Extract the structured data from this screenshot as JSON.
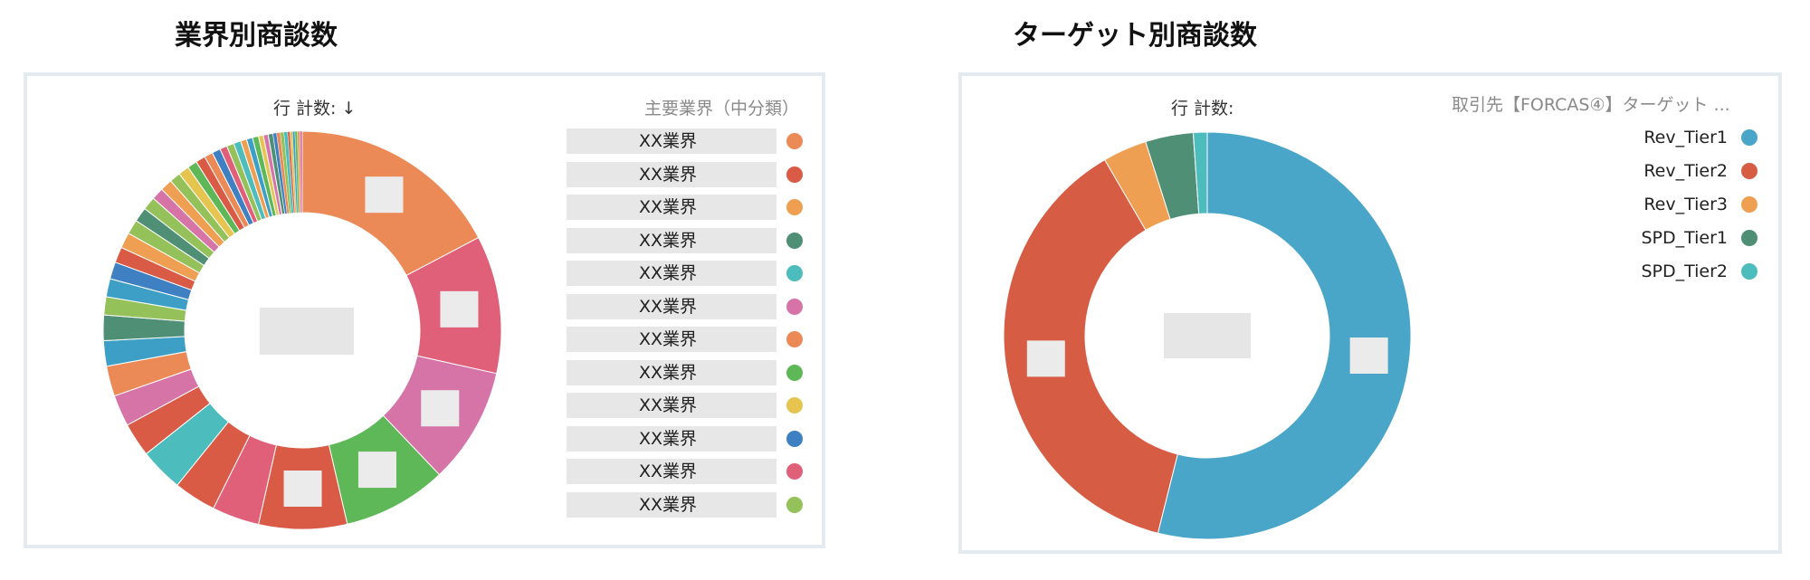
{
  "left_panel": {
    "title": "業界別商談数",
    "measure_label": "行 計数: ↓",
    "legend_title": "主要業界（中分類）",
    "legend": [
      {
        "label": "XX業界",
        "color": "#ec8a57"
      },
      {
        "label": "XX業界",
        "color": "#d95b45"
      },
      {
        "label": "XX業界",
        "color": "#ef9f52"
      },
      {
        "label": "XX業界",
        "color": "#4e8f76"
      },
      {
        "label": "XX業界",
        "color": "#4dbcbc"
      },
      {
        "label": "XX業界",
        "color": "#d674a8"
      },
      {
        "label": "XX業界",
        "color": "#ec8a57"
      },
      {
        "label": "XX業界",
        "color": "#5fb857"
      },
      {
        "label": "XX業界",
        "color": "#e5c550"
      },
      {
        "label": "XX業界",
        "color": "#3e80c1"
      },
      {
        "label": "XX業界",
        "color": "#e0607a"
      },
      {
        "label": "XX業界",
        "color": "#94c15a"
      }
    ]
  },
  "right_panel": {
    "title": "ターゲット別商談数",
    "measure_label": "行 計数:",
    "legend_title": "取引先【FORCAS④】ターゲット ...",
    "legend": [
      {
        "label": "Rev_Tier1",
        "color": "#4aa6c8"
      },
      {
        "label": "Rev_Tier2",
        "color": "#d65c44"
      },
      {
        "label": "Rev_Tier3",
        "color": "#ef9f52"
      },
      {
        "label": "SPD_Tier1",
        "color": "#4e8f76"
      },
      {
        "label": "SPD_Tier2",
        "color": "#4dbcbc"
      }
    ]
  },
  "chart_data": [
    {
      "type": "pie",
      "variant": "donut",
      "title": "業界別商談数",
      "legend_title": "主要業界（中分類）",
      "sort": "descending",
      "values": [
        17.6,
        11.4,
        9.6,
        8.6,
        7.3,
        3.9,
        3.5,
        3.6,
        2.8,
        2.6,
        2.5,
        2.1,
        2.1,
        1.5,
        1.5,
        1.4,
        1.3,
        1.3,
        1.2,
        1.2,
        1.1,
        1.0,
        1.0,
        0.9,
        0.9,
        0.8,
        0.8,
        0.7,
        0.7,
        0.6,
        0.6,
        0.6,
        0.5,
        0.5,
        0.5,
        0.4,
        0.4,
        0.4,
        0.3,
        0.3,
        0.3,
        0.3,
        0.2,
        0.2,
        0.2,
        0.2,
        0.2,
        0.2
      ],
      "colors": [
        "#ec8a57",
        "#e0607a",
        "#d674a8",
        "#5fb857",
        "#d95b45",
        "#e0607a",
        "#d95b45",
        "#4dbcbc",
        "#d95b45",
        "#d674a8",
        "#ec8a57",
        "#3e9fc6",
        "#4e8f76",
        "#94c15a",
        "#3e9fc6",
        "#3e80c1",
        "#d95b45",
        "#ef9f52",
        "#94c15a",
        "#4e8f76",
        "#94c15a",
        "#d674a8",
        "#ef9f52",
        "#94c15a",
        "#e5c550",
        "#5fb857",
        "#d95b45",
        "#ec8a57",
        "#3e80c1",
        "#e0607a",
        "#94c15a",
        "#4dbcbc",
        "#ef9f52",
        "#3e9fc6",
        "#5fb857",
        "#e5c550",
        "#d674a8",
        "#4e8f76",
        "#3e80c1",
        "#ec8a57",
        "#94c15a",
        "#4dbcbc",
        "#d95b45",
        "#e5c550",
        "#3e9fc6",
        "#5fb857",
        "#ef9f52",
        "#d674a8"
      ],
      "masked_labels": [
        0,
        1,
        2,
        3,
        4
      ]
    },
    {
      "type": "pie",
      "variant": "donut",
      "title": "ターゲット別商談数",
      "legend_title": "取引先【FORCAS④】ターゲット ...",
      "categories": [
        "Rev_Tier1",
        "Rev_Tier2",
        "Rev_Tier3",
        "SPD_Tier1",
        "SPD_Tier2"
      ],
      "values": [
        53.9,
        37.7,
        3.5,
        3.8,
        1.1
      ],
      "colors": [
        "#4aa6c8",
        "#d65c44",
        "#ef9f52",
        "#4e8f76",
        "#4dbcbc"
      ],
      "masked_labels": [
        0,
        1
      ]
    }
  ]
}
